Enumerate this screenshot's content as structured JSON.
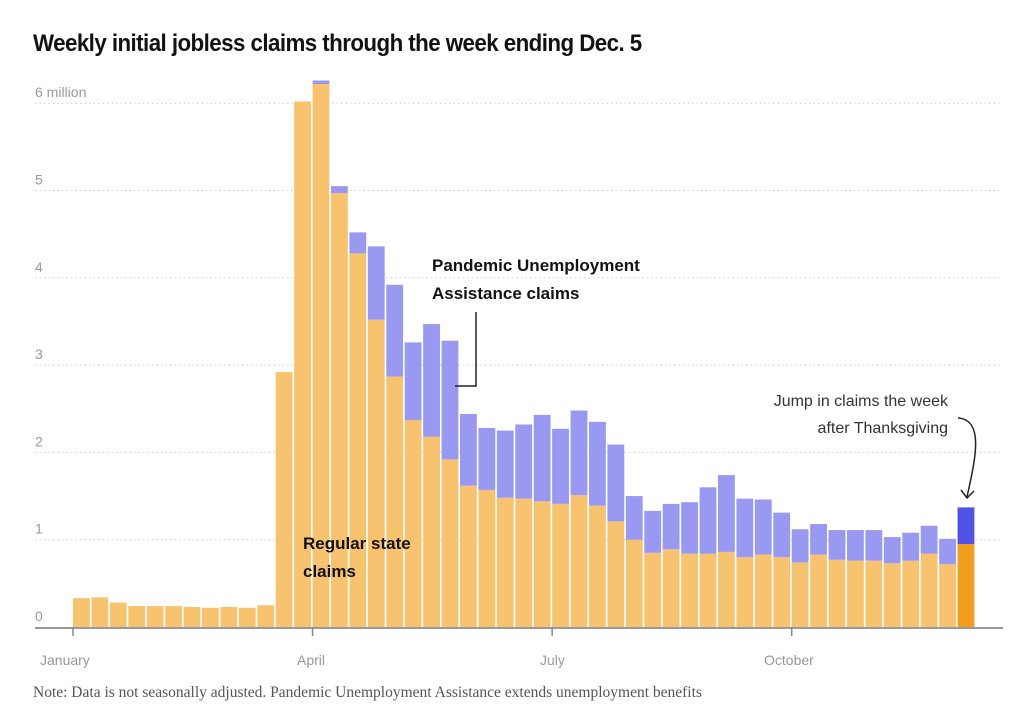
{
  "title": "Weekly initial jobless claims through the week ending Dec. 5",
  "note": "Note: Data is not seasonally adjusted. Pandemic Unemployment Assistance extends unemployment benefits",
  "colors": {
    "regular": "#f7c36f",
    "pua": "#9a99f2",
    "regular_highlight": "#f39c1d",
    "pua_highlight": "#5352e6",
    "grid": "#cccccc",
    "axis": "#999999"
  },
  "chart_data": {
    "type": "bar",
    "stacked": true,
    "title": "Weekly initial jobless claims through the week ending Dec. 5",
    "ylim": [
      0,
      6.3
    ],
    "y_ticks": [
      {
        "value": 0,
        "label": "0"
      },
      {
        "value": 1,
        "label": "1"
      },
      {
        "value": 2,
        "label": "2"
      },
      {
        "value": 3,
        "label": "3"
      },
      {
        "value": 4,
        "label": "4"
      },
      {
        "value": 5,
        "label": "5"
      },
      {
        "value": 6,
        "label": "6 million"
      }
    ],
    "x_ticks": [
      {
        "week": 1,
        "label": "January"
      },
      {
        "week": 14,
        "label": "April"
      },
      {
        "week": 27,
        "label": "July"
      },
      {
        "week": 40,
        "label": "October"
      }
    ],
    "grid": true,
    "series": [
      {
        "name": "Regular state claims",
        "values": [
          0.33,
          0.34,
          0.28,
          0.24,
          0.24,
          0.24,
          0.23,
          0.22,
          0.23,
          0.22,
          0.25,
          2.92,
          6.02,
          6.22,
          4.97,
          4.28,
          3.52,
          2.87,
          2.37,
          2.18,
          1.92,
          1.62,
          1.57,
          1.48,
          1.47,
          1.44,
          1.41,
          1.51,
          1.39,
          1.21,
          1.0,
          0.85,
          0.89,
          0.84,
          0.84,
          0.86,
          0.8,
          0.83,
          0.8,
          0.74,
          0.83,
          0.77,
          0.76,
          0.76,
          0.73,
          0.76,
          0.84,
          0.72,
          0.95
        ]
      },
      {
        "name": "Pandemic Unemployment Assistance claims",
        "values": [
          0,
          0,
          0,
          0,
          0,
          0,
          0,
          0,
          0,
          0,
          0,
          0,
          0,
          0.04,
          0.08,
          0.24,
          0.84,
          1.05,
          0.89,
          1.29,
          1.36,
          0.82,
          0.71,
          0.77,
          0.85,
          0.99,
          0.86,
          0.97,
          0.96,
          0.88,
          0.5,
          0.48,
          0.52,
          0.59,
          0.76,
          0.88,
          0.67,
          0.63,
          0.51,
          0.38,
          0.35,
          0.34,
          0.35,
          0.35,
          0.3,
          0.32,
          0.32,
          0.29,
          0.42
        ]
      }
    ],
    "annotations": {
      "pua": [
        "Pandemic Unemployment",
        "Assistance claims"
      ],
      "regular": [
        "Regular state",
        "claims"
      ],
      "jump": [
        "Jump in claims the week",
        "after Thanksgiving"
      ]
    }
  }
}
